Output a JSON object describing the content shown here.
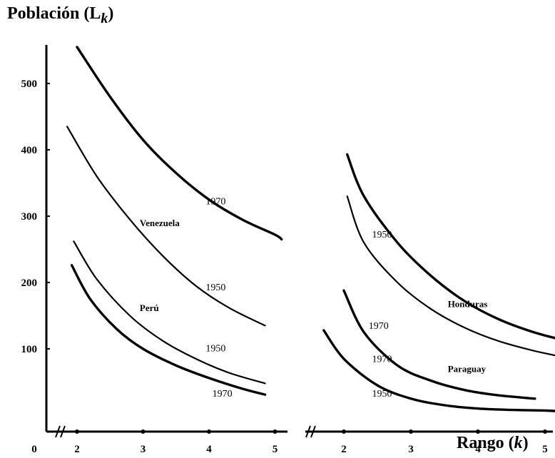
{
  "chart_data": {
    "type": "line",
    "ylabel": "Población (L",
    "ylabel_sub": "k",
    "ylabel_close": ")",
    "xlabel": "Rango (",
    "xlabel_var": "k",
    "xlabel_close": ")",
    "ylim": [
      0,
      580
    ],
    "yticks": [
      100,
      200,
      300,
      400,
      500
    ],
    "ytick_labels": [
      "100",
      "200",
      "300",
      "400",
      "500"
    ],
    "origin_label": "0",
    "grid": false,
    "panels": [
      {
        "xticks": [
          2,
          3,
          4,
          5
        ],
        "xtick_labels": [
          "2",
          "3",
          "4",
          "5"
        ],
        "xlim": [
          1.3,
          5.2
        ],
        "series": [
          {
            "country": "Venezuela",
            "year": "1970",
            "weight": "heavy",
            "x": [
              2.0,
              2.5,
              3.0,
              3.5,
              4.0,
              4.5,
              5.0,
              5.1
            ],
            "y": [
              555,
              480,
              415,
              365,
              325,
              295,
              272,
              265
            ]
          },
          {
            "country": "Venezuela",
            "year": "1950",
            "weight": "light",
            "x": [
              1.85,
              2.3,
              2.8,
              3.3,
              3.8,
              4.3,
              4.85
            ],
            "y": [
              435,
              360,
              295,
              240,
              195,
              162,
              135
            ]
          },
          {
            "country": "Perú",
            "year": "1950",
            "weight": "light",
            "x": [
              1.95,
              2.3,
              2.8,
              3.3,
              3.8,
              4.3,
              4.85
            ],
            "y": [
              262,
              205,
              150,
              112,
              85,
              64,
              48
            ]
          },
          {
            "country": "Perú",
            "year": "1970",
            "weight": "heavy",
            "x": [
              1.92,
              2.2,
              2.6,
              3.0,
              3.5,
              4.0,
              4.5,
              4.85
            ],
            "y": [
              226,
              175,
              130,
              100,
              75,
              56,
              40,
              31
            ]
          }
        ],
        "annotations": [
          {
            "text": "1970",
            "x": 3.95,
            "y": 318,
            "kind": "year"
          },
          {
            "text": "Venezuela",
            "x": 2.95,
            "y": 285,
            "kind": "country"
          },
          {
            "text": "1950",
            "x": 3.95,
            "y": 188,
            "kind": "year"
          },
          {
            "text": "Perú",
            "x": 2.95,
            "y": 157,
            "kind": "country"
          },
          {
            "text": "1950",
            "x": 3.95,
            "y": 96,
            "kind": "year"
          },
          {
            "text": "1970",
            "x": 4.05,
            "y": 28,
            "kind": "year"
          }
        ]
      },
      {
        "xticks": [
          2,
          3,
          4,
          5
        ],
        "xtick_labels": [
          "2",
          "3",
          "4",
          "5"
        ],
        "xlim": [
          1.45,
          5.2
        ],
        "series": [
          {
            "country": "Honduras",
            "year": "1950",
            "weight": "heavy",
            "x": [
              2.05,
              2.3,
              2.8,
              3.3,
              3.8,
              4.3,
              4.8,
              5.2
            ],
            "y": [
              393,
              330,
              260,
              210,
              172,
              145,
              126,
              115
            ]
          },
          {
            "country": "Honduras",
            "year": "1970",
            "weight": "light",
            "x": [
              2.05,
              2.3,
              2.8,
              3.3,
              3.8,
              4.3,
              4.8,
              5.2
            ],
            "y": [
              330,
              260,
              200,
              160,
              132,
              112,
              98,
              89
            ]
          },
          {
            "country": "Paraguay",
            "year": "1970",
            "weight": "heavy",
            "x": [
              2.0,
              2.3,
              2.8,
              3.3,
              3.8,
              4.3,
              4.85
            ],
            "y": [
              188,
              125,
              75,
              52,
              38,
              30,
              25
            ]
          },
          {
            "country": "Paraguay",
            "year": "1950",
            "weight": "heavy",
            "x": [
              1.7,
              2.0,
              2.5,
              3.0,
              3.5,
              4.0,
              4.5,
              5.0,
              5.2
            ],
            "y": [
              128,
              85,
              45,
              25,
              15,
              10,
              8,
              7,
              6
            ]
          }
        ],
        "annotations": [
          {
            "text": "1950",
            "x": 2.42,
            "y": 268,
            "kind": "year"
          },
          {
            "text": "Honduras",
            "x": 3.55,
            "y": 163,
            "kind": "country"
          },
          {
            "text": "1970",
            "x": 2.37,
            "y": 130,
            "kind": "year"
          },
          {
            "text": "1970",
            "x": 2.42,
            "y": 80,
            "kind": "year"
          },
          {
            "text": "Paraguay",
            "x": 3.55,
            "y": 65,
            "kind": "country"
          },
          {
            "text": "1950",
            "x": 2.42,
            "y": 28,
            "kind": "year"
          }
        ]
      }
    ]
  }
}
